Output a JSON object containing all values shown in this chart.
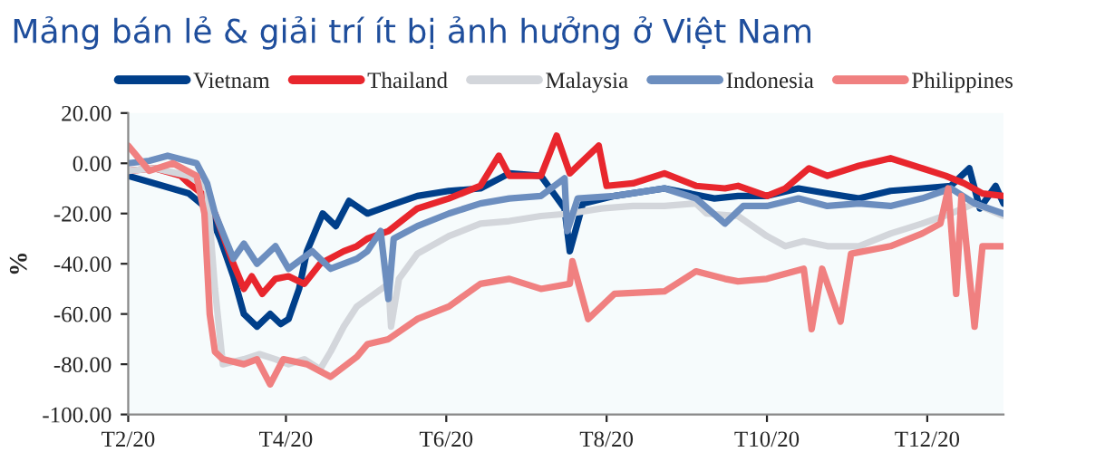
{
  "chart_data": {
    "type": "line",
    "title": "Mảng bán lẻ & giải trí ít bị ảnh hưởng ở Việt Nam",
    "ylabel": "%",
    "legend": "top",
    "grid": false,
    "line_style": "solid",
    "marker": "none",
    "xlim": [
      "2020-02-01",
      "2020-12-30"
    ],
    "xticks": [
      {
        "value": "2020-02-01",
        "label": "T2/20"
      },
      {
        "value": "2020-04-01",
        "label": "T4/20"
      },
      {
        "value": "2020-06-01",
        "label": "T6/20"
      },
      {
        "value": "2020-08-01",
        "label": "T8/20"
      },
      {
        "value": "2020-10-01",
        "label": "T10/20"
      },
      {
        "value": "2020-12-01",
        "label": "T12/20"
      }
    ],
    "ylim": [
      -100,
      20
    ],
    "yticks": [
      {
        "value": -100,
        "label": "-100.00"
      },
      {
        "value": -80,
        "label": "-80.00"
      },
      {
        "value": -60,
        "label": "-60.00"
      },
      {
        "value": -40,
        "label": "-40.00"
      },
      {
        "value": -20,
        "label": "-20.00"
      },
      {
        "value": 0,
        "label": "0.00"
      },
      {
        "value": 20,
        "label": "20.00"
      }
    ],
    "series": [
      {
        "name": "Vietnam",
        "color": "#003f8a",
        "x": [
          "2020-02-01",
          "2020-02-11",
          "2020-02-24",
          "2020-03-02",
          "2020-03-07",
          "2020-03-12",
          "2020-03-16",
          "2020-03-21",
          "2020-03-26",
          "2020-03-30",
          "2020-04-02",
          "2020-04-06",
          "2020-04-09",
          "2020-04-15",
          "2020-04-20",
          "2020-04-25",
          "2020-05-02",
          "2020-05-10",
          "2020-05-21",
          "2020-06-02",
          "2020-06-14",
          "2020-06-25",
          "2020-07-07",
          "2020-07-16",
          "2020-07-18",
          "2020-07-23",
          "2020-08-04",
          "2020-08-23",
          "2020-09-11",
          "2020-09-20",
          "2020-10-01",
          "2020-10-13",
          "2020-10-24",
          "2020-11-05",
          "2020-11-17",
          "2020-11-29",
          "2020-12-10",
          "2020-12-17",
          "2020-12-21",
          "2020-12-27",
          "2020-12-30"
        ],
        "values": [
          -5,
          -8,
          -12,
          -18,
          -30,
          -45,
          -60,
          -65,
          -60,
          -64,
          -62,
          -50,
          -35,
          -20,
          -25,
          -15,
          -20,
          -17,
          -13,
          -11,
          -10,
          -4,
          -5,
          -18,
          -35,
          -16,
          -13,
          -10,
          -14,
          -13,
          -13,
          -10,
          -12,
          -14,
          -11,
          -10,
          -9,
          -2,
          -18,
          -9,
          -16
        ]
      },
      {
        "name": "Thailand",
        "color": "#e8262d",
        "x": [
          "2020-02-01",
          "2020-02-11",
          "2020-02-21",
          "2020-02-24",
          "2020-02-29",
          "2020-03-05",
          "2020-03-12",
          "2020-03-16",
          "2020-03-19",
          "2020-03-23",
          "2020-03-28",
          "2020-04-02",
          "2020-04-08",
          "2020-04-14",
          "2020-04-23",
          "2020-04-28",
          "2020-05-02",
          "2020-05-10",
          "2020-05-21",
          "2020-06-02",
          "2020-06-14",
          "2020-06-21",
          "2020-06-25",
          "2020-07-07",
          "2020-07-13",
          "2020-07-18",
          "2020-07-29",
          "2020-08-01",
          "2020-08-11",
          "2020-08-23",
          "2020-09-04",
          "2020-09-15",
          "2020-09-20",
          "2020-10-01",
          "2020-10-08",
          "2020-10-17",
          "2020-10-24",
          "2020-11-05",
          "2020-11-17",
          "2020-11-29",
          "2020-12-08",
          "2020-12-15",
          "2020-12-22",
          "2020-12-30"
        ],
        "values": [
          -3,
          -2,
          -5,
          -8,
          -12,
          -20,
          -40,
          -50,
          -45,
          -52,
          -46,
          -45,
          -48,
          -40,
          -35,
          -33,
          -30,
          -27,
          -18,
          -14,
          -9,
          3,
          -5,
          -5,
          11,
          -4,
          7,
          -9,
          -8,
          -4,
          -9,
          -10,
          -9,
          -13,
          -10,
          -2,
          -5,
          -1,
          2,
          -2,
          -5,
          -8,
          -12,
          -13
        ]
      },
      {
        "name": "Malaysia",
        "color": "#d3d6db",
        "x": [
          "2020-02-01",
          "2020-02-11",
          "2020-02-24",
          "2020-03-02",
          "2020-03-05",
          "2020-03-08",
          "2020-03-16",
          "2020-03-22",
          "2020-03-28",
          "2020-04-02",
          "2020-04-08",
          "2020-04-14",
          "2020-04-18",
          "2020-04-23",
          "2020-04-28",
          "2020-05-10",
          "2020-05-11",
          "2020-05-14",
          "2020-05-21",
          "2020-06-02",
          "2020-06-14",
          "2020-06-25",
          "2020-07-07",
          "2020-07-18",
          "2020-07-30",
          "2020-08-11",
          "2020-08-23",
          "2020-09-04",
          "2020-09-08",
          "2020-09-20",
          "2020-10-01",
          "2020-10-08",
          "2020-10-15",
          "2020-10-24",
          "2020-11-05",
          "2020-11-17",
          "2020-11-29",
          "2020-12-10",
          "2020-12-19",
          "2020-12-30"
        ],
        "values": [
          -3,
          -2,
          -5,
          -10,
          -50,
          -80,
          -78,
          -76,
          -78,
          -80,
          -78,
          -82,
          -75,
          -65,
          -57,
          -48,
          -65,
          -46,
          -36,
          -29,
          -24,
          -23,
          -21,
          -20,
          -18,
          -17,
          -17,
          -16,
          -20,
          -21,
          -29,
          -33,
          -31,
          -33,
          -33,
          -28,
          -24,
          -20,
          -16,
          -21
        ]
      },
      {
        "name": "Indonesia",
        "color": "#6c8ebf",
        "x": [
          "2020-02-01",
          "2020-02-09",
          "2020-02-16",
          "2020-02-27",
          "2020-03-02",
          "2020-03-05",
          "2020-03-12",
          "2020-03-16",
          "2020-03-21",
          "2020-03-28",
          "2020-04-02",
          "2020-04-11",
          "2020-04-18",
          "2020-04-28",
          "2020-05-02",
          "2020-05-07",
          "2020-05-10",
          "2020-05-12",
          "2020-05-21",
          "2020-06-02",
          "2020-06-14",
          "2020-06-25",
          "2020-07-07",
          "2020-07-16",
          "2020-07-17",
          "2020-07-21",
          "2020-08-04",
          "2020-08-23",
          "2020-09-04",
          "2020-09-15",
          "2020-09-22",
          "2020-10-01",
          "2020-10-13",
          "2020-10-24",
          "2020-11-05",
          "2020-11-17",
          "2020-11-29",
          "2020-12-10",
          "2020-12-19",
          "2020-12-30"
        ],
        "values": [
          0,
          1,
          3,
          0,
          -8,
          -20,
          -38,
          -32,
          -40,
          -33,
          -42,
          -35,
          -42,
          -38,
          -35,
          -27,
          -54,
          -30,
          -25,
          -20,
          -16,
          -14,
          -13,
          -6,
          -27,
          -14,
          -13,
          -10,
          -14,
          -24,
          -17,
          -17,
          -14,
          -17,
          -16,
          -17,
          -14,
          -10,
          -16,
          -20
        ]
      },
      {
        "name": "Philippines",
        "color": "#f08080",
        "x": [
          "2020-02-01",
          "2020-02-09",
          "2020-02-18",
          "2020-02-27",
          "2020-03-01",
          "2020-03-03",
          "2020-03-05",
          "2020-03-08",
          "2020-03-16",
          "2020-03-21",
          "2020-03-26",
          "2020-03-31",
          "2020-04-09",
          "2020-04-18",
          "2020-04-28",
          "2020-05-02",
          "2020-05-10",
          "2020-05-21",
          "2020-06-02",
          "2020-06-14",
          "2020-06-25",
          "2020-07-07",
          "2020-07-18",
          "2020-07-19",
          "2020-07-25",
          "2020-08-04",
          "2020-08-23",
          "2020-09-04",
          "2020-09-15",
          "2020-09-20",
          "2020-10-01",
          "2020-10-15",
          "2020-10-18",
          "2020-10-22",
          "2020-10-29",
          "2020-11-02",
          "2020-11-17",
          "2020-11-29",
          "2020-12-06",
          "2020-12-09",
          "2020-12-12",
          "2020-12-14",
          "2020-12-19",
          "2020-12-22",
          "2020-12-30"
        ],
        "values": [
          7,
          -3,
          0,
          -5,
          -20,
          -60,
          -75,
          -78,
          -80,
          -78,
          -88,
          -78,
          -80,
          -85,
          -77,
          -72,
          -70,
          -62,
          -57,
          -48,
          -46,
          -50,
          -48,
          -39,
          -62,
          -52,
          -51,
          -43,
          -46,
          -47,
          -46,
          -42,
          -66,
          -42,
          -63,
          -36,
          -33,
          -28,
          -24,
          -10,
          -52,
          -13,
          -65,
          -33,
          -33
        ]
      }
    ]
  }
}
